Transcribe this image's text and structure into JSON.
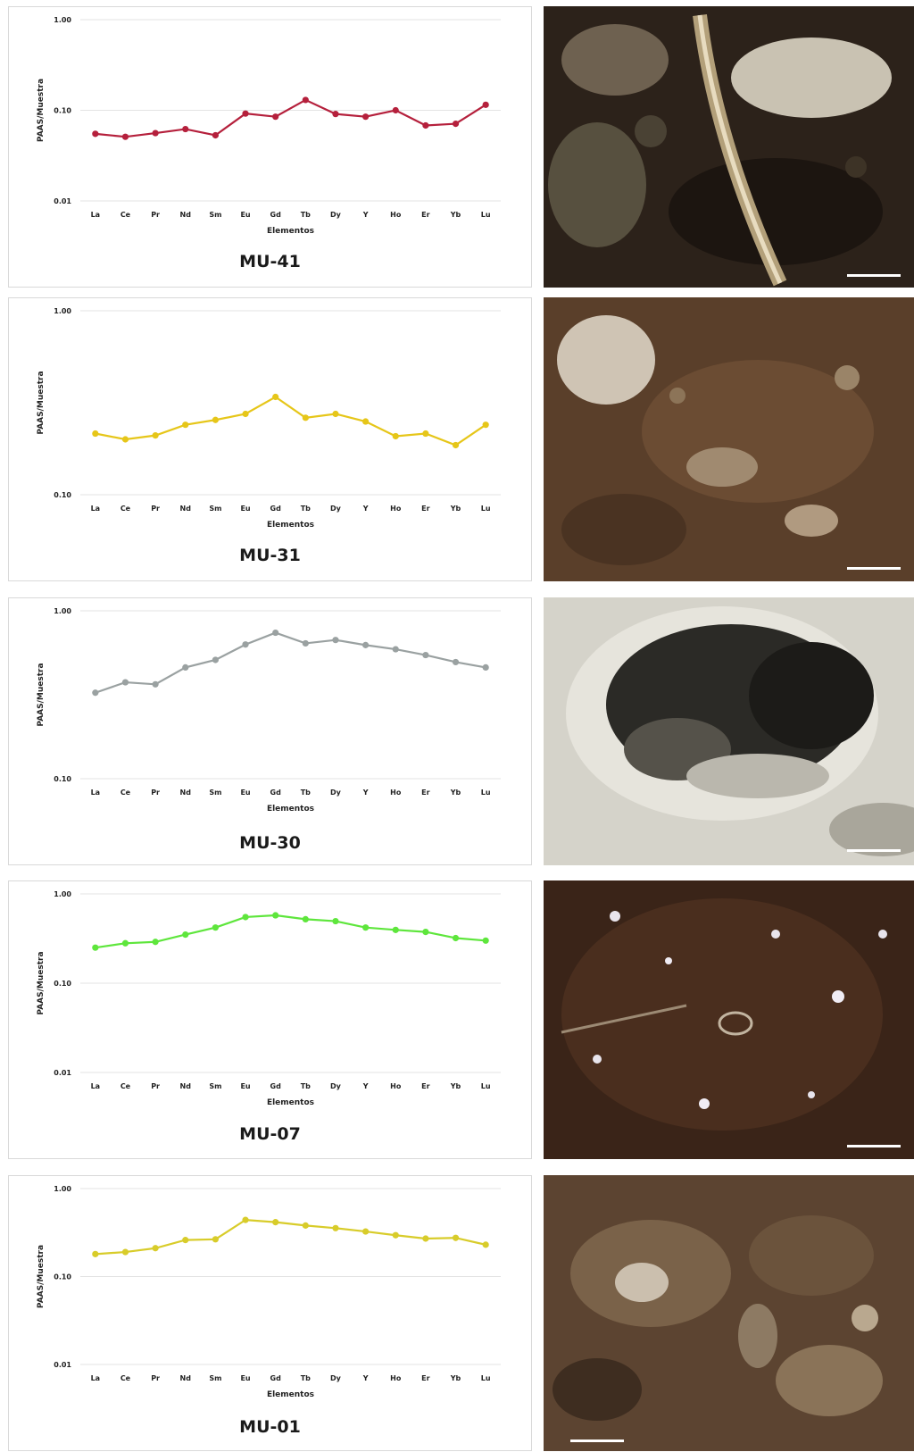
{
  "chart_data": [
    {
      "type": "line",
      "label": "MU-41",
      "xlabel": "Elementos",
      "ylabel": "PAAS/Muestra",
      "yscale": "log",
      "ylim": [
        0.01,
        1.0
      ],
      "yticks": [
        "0.01",
        "0.10",
        "1.00"
      ],
      "categories": [
        "La",
        "Ce",
        "Pr",
        "Nd",
        "Sm",
        "Eu",
        "Gd",
        "Tb",
        "Dy",
        "Y",
        "Ho",
        "Er",
        "Yb",
        "Lu"
      ],
      "values": [
        0.055,
        0.051,
        0.056,
        0.062,
        0.053,
        0.092,
        0.085,
        0.13,
        0.091,
        0.085,
        0.1,
        0.068,
        0.071,
        0.115
      ],
      "color": "#b5203c",
      "grid": true
    },
    {
      "type": "line",
      "label": "MU-31",
      "xlabel": "Elementos",
      "ylabel": "PAAS/Muestra",
      "yscale": "log",
      "ylim": [
        0.1,
        1.0
      ],
      "yticks": [
        "0.10",
        "1.00"
      ],
      "categories": [
        "La",
        "Ce",
        "Pr",
        "Nd",
        "Sm",
        "Eu",
        "Gd",
        "Tb",
        "Dy",
        "Y",
        "Ho",
        "Er",
        "Yb",
        "Lu"
      ],
      "values": [
        0.215,
        0.2,
        0.21,
        0.24,
        0.255,
        0.275,
        0.34,
        0.262,
        0.275,
        0.25,
        0.208,
        0.215,
        0.186,
        0.24
      ],
      "color": "#e6c619",
      "grid": true
    },
    {
      "type": "line",
      "label": "MU-30",
      "xlabel": "Elementos",
      "ylabel": "PAAS/Muestra",
      "yscale": "log",
      "ylim": [
        0.1,
        1.0
      ],
      "yticks": [
        "0.10",
        "1.00"
      ],
      "categories": [
        "La",
        "Ce",
        "Pr",
        "Nd",
        "Sm",
        "Eu",
        "Gd",
        "Tb",
        "Dy",
        "Y",
        "Ho",
        "Er",
        "Yb",
        "Lu"
      ],
      "values": [
        0.325,
        0.375,
        0.365,
        0.46,
        0.51,
        0.63,
        0.74,
        0.64,
        0.67,
        0.625,
        0.59,
        0.545,
        0.495,
        0.46
      ],
      "color": "#9aa1a1",
      "grid": true
    },
    {
      "type": "line",
      "label": "MU-07",
      "xlabel": "Elementos",
      "ylabel": "PAAS/Muestra",
      "yscale": "log",
      "ylim": [
        0.01,
        1.0
      ],
      "yticks": [
        "0.01",
        "0.10",
        "1.00"
      ],
      "categories": [
        "La",
        "Ce",
        "Pr",
        "Nd",
        "Sm",
        "Eu",
        "Gd",
        "Tb",
        "Dy",
        "Y",
        "Ho",
        "Er",
        "Yb",
        "Lu"
      ],
      "values": [
        0.25,
        0.28,
        0.29,
        0.35,
        0.42,
        0.55,
        0.575,
        0.52,
        0.495,
        0.42,
        0.395,
        0.375,
        0.32,
        0.3
      ],
      "color": "#5ee63c",
      "grid": true
    },
    {
      "type": "line",
      "label": "MU-01",
      "xlabel": "Elementos",
      "ylabel": "PAAS/Muestra",
      "yscale": "log",
      "ylim": [
        0.01,
        1.0
      ],
      "yticks": [
        "0.01",
        "0.10",
        "1.00"
      ],
      "categories": [
        "La",
        "Ce",
        "Pr",
        "Nd",
        "Sm",
        "Eu",
        "Gd",
        "Tb",
        "Dy",
        "Y",
        "Ho",
        "Er",
        "Yb",
        "Lu"
      ],
      "values": [
        0.18,
        0.19,
        0.21,
        0.26,
        0.265,
        0.44,
        0.415,
        0.38,
        0.355,
        0.325,
        0.295,
        0.27,
        0.275,
        0.23
      ],
      "color": "#d8cc2a",
      "grid": true
    }
  ],
  "photos": [
    {
      "tone": "dark-brown",
      "icon": "micrograph-image"
    },
    {
      "tone": "granular-brown",
      "icon": "micrograph-image"
    },
    {
      "tone": "gray-pale",
      "icon": "micrograph-image"
    },
    {
      "tone": "speckled-dark",
      "icon": "micrograph-image"
    },
    {
      "tone": "mottled-brown",
      "icon": "micrograph-image"
    }
  ]
}
